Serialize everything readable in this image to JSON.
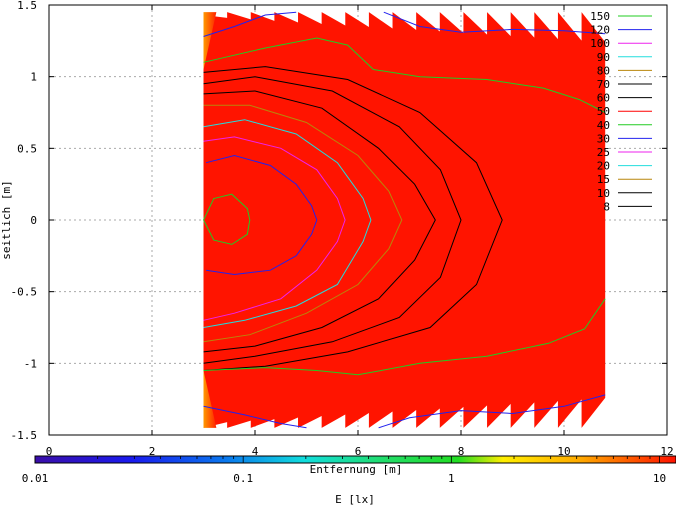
{
  "chart_data": {
    "type": "heatmap",
    "title": "",
    "xlabel": "Entfernung [m]",
    "ylabel": "seitlich [m]",
    "xlim": [
      0,
      12
    ],
    "ylim": [
      -1.5,
      1.5
    ],
    "x_ticks": [
      "0",
      "2",
      "4",
      "6",
      "8",
      "10",
      "12"
    ],
    "y_ticks": [
      "1.5",
      "1",
      "0.5",
      "0",
      "-0.5",
      "-1",
      "-1.5"
    ],
    "x_tick_values": [
      0,
      2,
      4,
      6,
      8,
      10,
      12
    ],
    "y_tick_values": [
      1.5,
      1,
      0.5,
      0,
      -0.5,
      -1,
      -1.5
    ],
    "grid": true,
    "data_region": {
      "x": [
        3.0,
        10.8
      ],
      "y": [
        -1.45,
        1.45
      ]
    },
    "colorbar": {
      "label": "E [lx]",
      "scale": "log",
      "range": [
        0.01,
        12
      ],
      "ticks": [
        "0.01",
        "0.1",
        "1",
        "10"
      ],
      "tick_values": [
        0.01,
        0.1,
        1,
        10
      ]
    },
    "contour_levels": [
      {
        "level": "150",
        "color": "#22cc22",
        "label": "150"
      },
      {
        "level": "120",
        "color": "#2222ee",
        "label": "120"
      },
      {
        "level": "100",
        "color": "#ee22ee",
        "label": "100"
      },
      {
        "level": "90",
        "color": "#22dddd",
        "label": "90"
      },
      {
        "level": "80",
        "color": "#b8860b",
        "label": "80"
      },
      {
        "level": "70",
        "color": "#000000",
        "label": "70"
      },
      {
        "level": "60",
        "color": "#000000",
        "label": "60"
      },
      {
        "level": "50",
        "color": "#ff0000",
        "label": "50"
      },
      {
        "level": "40",
        "color": "#22cc22",
        "label": "40"
      },
      {
        "level": "30",
        "color": "#2222ee",
        "label": "30"
      },
      {
        "level": "25",
        "color": "#ee22ee",
        "label": "25"
      },
      {
        "level": "20",
        "color": "#22dddd",
        "label": "20"
      },
      {
        "level": "15",
        "color": "#b8860b",
        "label": "15"
      },
      {
        "level": "10",
        "color": "#000000",
        "label": "10"
      },
      {
        "level": "8",
        "color": "#000000",
        "label": "8"
      }
    ],
    "contours": [
      {
        "color": "#22cc22",
        "points": [
          [
            3.0,
            0.0
          ],
          [
            3.2,
            0.15
          ],
          [
            3.55,
            0.18
          ],
          [
            3.85,
            0.08
          ],
          [
            3.9,
            0.0
          ],
          [
            3.85,
            -0.1
          ],
          [
            3.55,
            -0.17
          ],
          [
            3.2,
            -0.14
          ],
          [
            3.0,
            0.0
          ]
        ]
      },
      {
        "color": "#2222ee",
        "points": [
          [
            3.05,
            0.4
          ],
          [
            3.6,
            0.45
          ],
          [
            4.3,
            0.38
          ],
          [
            4.8,
            0.25
          ],
          [
            5.1,
            0.1
          ],
          [
            5.2,
            0.0
          ],
          [
            5.1,
            -0.1
          ],
          [
            4.8,
            -0.25
          ],
          [
            4.3,
            -0.35
          ],
          [
            3.6,
            -0.38
          ],
          [
            3.05,
            -0.35
          ]
        ]
      },
      {
        "color": "#ee22ee",
        "points": [
          [
            3.0,
            0.55
          ],
          [
            3.6,
            0.58
          ],
          [
            4.5,
            0.5
          ],
          [
            5.2,
            0.35
          ],
          [
            5.6,
            0.15
          ],
          [
            5.75,
            0.0
          ],
          [
            5.6,
            -0.15
          ],
          [
            5.2,
            -0.35
          ],
          [
            4.5,
            -0.55
          ],
          [
            3.6,
            -0.65
          ],
          [
            3.0,
            -0.7
          ]
        ]
      },
      {
        "color": "#22dddd",
        "points": [
          [
            3.0,
            0.65
          ],
          [
            3.8,
            0.7
          ],
          [
            4.8,
            0.6
          ],
          [
            5.6,
            0.4
          ],
          [
            6.1,
            0.15
          ],
          [
            6.25,
            0.0
          ],
          [
            6.1,
            -0.15
          ],
          [
            5.6,
            -0.45
          ],
          [
            4.8,
            -0.6
          ],
          [
            3.8,
            -0.7
          ],
          [
            3.0,
            -0.75
          ]
        ]
      },
      {
        "color": "#b8860b",
        "points": [
          [
            3.0,
            0.8
          ],
          [
            3.9,
            0.8
          ],
          [
            5.0,
            0.68
          ],
          [
            6.0,
            0.45
          ],
          [
            6.6,
            0.2
          ],
          [
            6.85,
            0.0
          ],
          [
            6.6,
            -0.2
          ],
          [
            6.0,
            -0.45
          ],
          [
            5.0,
            -0.65
          ],
          [
            3.9,
            -0.8
          ],
          [
            3.0,
            -0.85
          ]
        ]
      },
      {
        "color": "#000000",
        "points": [
          [
            3.0,
            0.88
          ],
          [
            4.0,
            0.9
          ],
          [
            5.3,
            0.78
          ],
          [
            6.4,
            0.5
          ],
          [
            7.1,
            0.25
          ],
          [
            7.5,
            0.0
          ],
          [
            7.1,
            -0.28
          ],
          [
            6.4,
            -0.55
          ],
          [
            5.3,
            -0.75
          ],
          [
            4.0,
            -0.88
          ],
          [
            3.0,
            -0.92
          ]
        ]
      },
      {
        "color": "#000000",
        "points": [
          [
            3.0,
            0.95
          ],
          [
            4.0,
            1.0
          ],
          [
            5.5,
            0.9
          ],
          [
            6.8,
            0.65
          ],
          [
            7.6,
            0.35
          ],
          [
            8.0,
            0.0
          ],
          [
            7.6,
            -0.4
          ],
          [
            6.8,
            -0.68
          ],
          [
            5.5,
            -0.85
          ],
          [
            4.0,
            -0.95
          ],
          [
            3.0,
            -1.0
          ]
        ]
      },
      {
        "color": "#000000",
        "points": [
          [
            3.0,
            1.03
          ],
          [
            4.2,
            1.07
          ],
          [
            5.8,
            0.98
          ],
          [
            7.2,
            0.75
          ],
          [
            8.3,
            0.4
          ],
          [
            8.8,
            0.0
          ],
          [
            8.3,
            -0.45
          ],
          [
            7.4,
            -0.75
          ],
          [
            5.8,
            -0.92
          ],
          [
            4.2,
            -1.02
          ],
          [
            3.0,
            -1.05
          ]
        ]
      },
      {
        "color": "#22cc22",
        "points": [
          [
            3.0,
            1.1
          ],
          [
            4.2,
            1.2
          ],
          [
            5.2,
            1.27
          ],
          [
            5.8,
            1.22
          ],
          [
            6.3,
            1.05
          ],
          [
            7.2,
            1.0
          ],
          [
            8.5,
            0.98
          ],
          [
            9.6,
            0.92
          ],
          [
            10.3,
            0.84
          ],
          [
            10.8,
            0.75
          ]
        ]
      },
      {
        "color": "#2222ee",
        "points": [
          [
            3.0,
            1.28
          ],
          [
            3.6,
            1.35
          ],
          [
            4.2,
            1.43
          ],
          [
            4.8,
            1.45
          ]
        ]
      },
      {
        "color": "#2222ee",
        "points": [
          [
            6.5,
            1.45
          ],
          [
            7.2,
            1.35
          ],
          [
            8.0,
            1.31
          ],
          [
            9.0,
            1.33
          ],
          [
            10.0,
            1.32
          ],
          [
            10.8,
            1.3
          ]
        ]
      },
      {
        "color": "#22cc22",
        "points": [
          [
            3.0,
            -1.05
          ],
          [
            4.2,
            -1.03
          ],
          [
            5.2,
            -1.05
          ],
          [
            6.0,
            -1.08
          ],
          [
            7.2,
            -1.0
          ],
          [
            8.5,
            -0.95
          ],
          [
            9.7,
            -0.86
          ],
          [
            10.4,
            -0.76
          ],
          [
            10.8,
            -0.55
          ]
        ]
      },
      {
        "color": "#2222ee",
        "points": [
          [
            3.0,
            -1.3
          ],
          [
            3.8,
            -1.36
          ],
          [
            4.5,
            -1.42
          ],
          [
            5.0,
            -1.45
          ]
        ]
      },
      {
        "color": "#2222ee",
        "points": [
          [
            6.4,
            -1.45
          ],
          [
            7.0,
            -1.38
          ],
          [
            8.0,
            -1.33
          ],
          [
            9.0,
            -1.35
          ],
          [
            10.0,
            -1.3
          ],
          [
            10.8,
            -1.22
          ]
        ]
      }
    ]
  }
}
